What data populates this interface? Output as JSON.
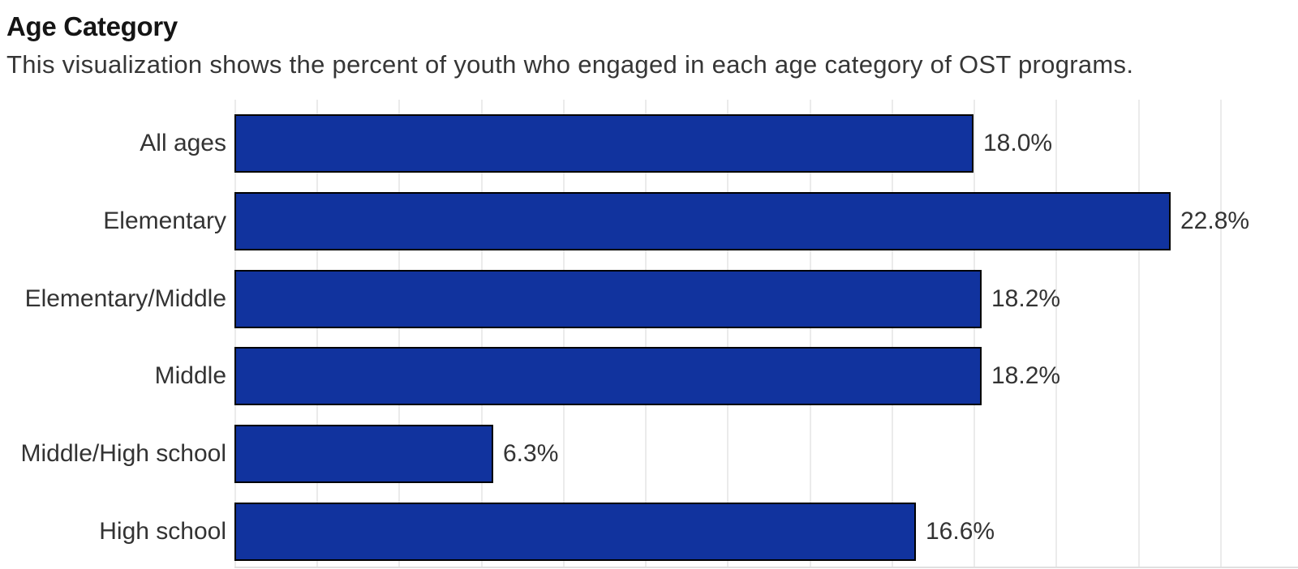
{
  "header": {
    "title": "Age Category",
    "subtitle": "This visualization shows the percent of youth who engaged in each age category of OST programs."
  },
  "chart_data": {
    "type": "bar",
    "orientation": "horizontal",
    "title": "Age Category",
    "subtitle": "This visualization shows the percent of youth who engaged in each age category of OST programs.",
    "categories": [
      "All ages",
      "Elementary",
      "Elementary/Middle",
      "Middle",
      "Middle/High school",
      "High school"
    ],
    "values": [
      18.0,
      22.8,
      18.2,
      18.2,
      6.3,
      16.6
    ],
    "value_labels": [
      "18.0%",
      "22.8%",
      "18.2%",
      "18.2%",
      "6.3%",
      "16.6%"
    ],
    "xlabel": "",
    "ylabel": "",
    "xlim": [
      0,
      25.9
    ],
    "gridline_step": 2,
    "grid": true,
    "legend": false,
    "colors": {
      "bar_fill": "#11339e",
      "bar_border": "#000000",
      "gridline": "#ebebeb",
      "axis_line": "#e0e0e0",
      "label_text": "#333333",
      "title_text": "#151515",
      "subtitle_text": "#363636"
    }
  }
}
